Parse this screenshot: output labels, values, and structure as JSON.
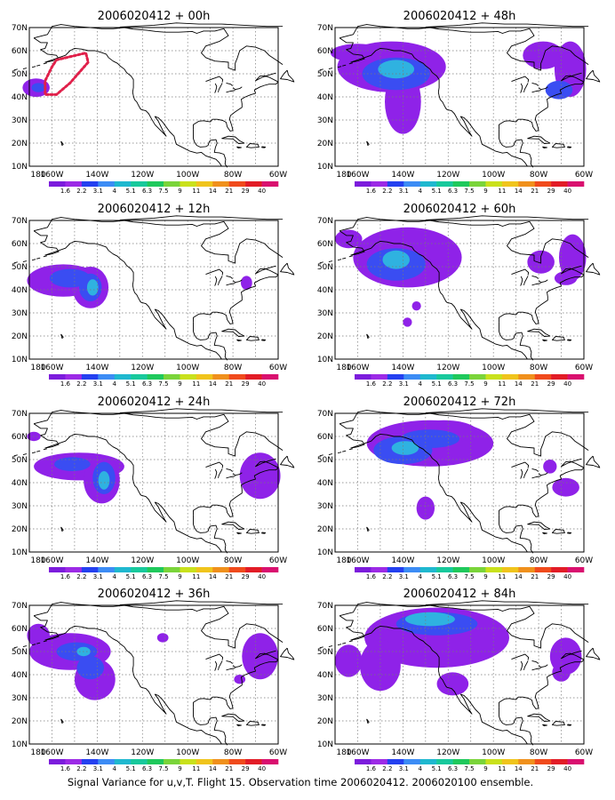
{
  "caption": "Signal Variance for u,v,T. Flight 15. Observation time 2006020412. 2006020100 ensemble.",
  "map": {
    "lon_labels": [
      "180",
      "160W",
      "140W",
      "120W",
      "100W",
      "80W",
      "60W"
    ],
    "lat_labels": [
      "10N",
      "20N",
      "30N",
      "40N",
      "50N",
      "60N",
      "70N"
    ],
    "lon_range": [
      -170,
      -60
    ],
    "lat_range": [
      10,
      70
    ],
    "projection": "cylindrical equidistant",
    "grid": "dotted"
  },
  "colorbar": {
    "labels": [
      "1.6",
      "2.2",
      "3.1",
      "4",
      "5.1",
      "6.3",
      "7.5",
      "9",
      "11",
      "14",
      "21",
      "29",
      "40"
    ],
    "colors": [
      "#7c1cdc",
      "#9c2ae6",
      "#2440f0",
      "#3c8cf5",
      "#1fb8cf",
      "#18c99c",
      "#1fc95c",
      "#7ad43a",
      "#c9e11c",
      "#f0c41c",
      "#f0901c",
      "#f04a1c",
      "#e21c26",
      "#d9106f"
    ]
  },
  "panels": [
    {
      "id": "p00",
      "title": "2006020412 + 00h",
      "track": [
        [
          -158,
          56
        ],
        [
          -145,
          59
        ],
        [
          -144,
          55
        ],
        [
          -152,
          46
        ],
        [
          -158,
          41
        ],
        [
          -163,
          41
        ],
        [
          -163,
          47
        ],
        [
          -160,
          53
        ]
      ],
      "blobs": [
        {
          "lon": -167,
          "lat": 44,
          "rx": 6,
          "ry": 4,
          "level": 0
        },
        {
          "lon": -166,
          "lat": 44,
          "rx": 3,
          "ry": 2,
          "level": 1
        }
      ]
    },
    {
      "id": "p48",
      "title": "2006020412 + 48h",
      "blobs": [
        {
          "lon": -145,
          "lat": 53,
          "rx": 24,
          "ry": 11,
          "level": 0
        },
        {
          "lon": -140,
          "lat": 38,
          "rx": 8,
          "ry": 14,
          "level": 0
        },
        {
          "lon": -143,
          "lat": 50,
          "rx": 15,
          "ry": 7,
          "level": 1
        },
        {
          "lon": -143,
          "lat": 52,
          "rx": 8,
          "ry": 4,
          "level": 2
        },
        {
          "lon": -78,
          "lat": 58,
          "rx": 9,
          "ry": 6,
          "level": 0
        },
        {
          "lon": -66,
          "lat": 52,
          "rx": 7,
          "ry": 12,
          "level": 0
        },
        {
          "lon": -71,
          "lat": 43,
          "rx": 6,
          "ry": 4,
          "level": 1
        },
        {
          "lon": -160,
          "lat": 59,
          "rx": 12,
          "ry": 4,
          "level": 0
        }
      ]
    },
    {
      "id": "p12",
      "title": "2006020412 + 12h",
      "blobs": [
        {
          "lon": -155,
          "lat": 44,
          "rx": 16,
          "ry": 7,
          "level": 0
        },
        {
          "lon": -143,
          "lat": 41,
          "rx": 8,
          "ry": 9,
          "level": 0
        },
        {
          "lon": -152,
          "lat": 45,
          "rx": 9,
          "ry": 4,
          "level": 1
        },
        {
          "lon": -143,
          "lat": 41,
          "rx": 5,
          "ry": 6,
          "level": 1
        },
        {
          "lon": -142,
          "lat": 41,
          "rx": 2.5,
          "ry": 3.5,
          "level": 2
        },
        {
          "lon": -74,
          "lat": 43,
          "rx": 2.5,
          "ry": 3,
          "level": 0
        }
      ]
    },
    {
      "id": "p60",
      "title": "2006020412 + 60h",
      "blobs": [
        {
          "lon": -138,
          "lat": 54,
          "rx": 24,
          "ry": 13,
          "level": 0
        },
        {
          "lon": -143,
          "lat": 51,
          "rx": 13,
          "ry": 7,
          "level": 1
        },
        {
          "lon": -143,
          "lat": 53,
          "rx": 6,
          "ry": 4,
          "level": 2
        },
        {
          "lon": -164,
          "lat": 62,
          "rx": 6,
          "ry": 4,
          "level": 0
        },
        {
          "lon": -79,
          "lat": 52,
          "rx": 6,
          "ry": 5,
          "level": 0
        },
        {
          "lon": -65,
          "lat": 54,
          "rx": 6,
          "ry": 10,
          "level": 0
        },
        {
          "lon": -68,
          "lat": 45,
          "rx": 5,
          "ry": 3,
          "level": 0
        },
        {
          "lon": -134,
          "lat": 33,
          "rx": 2,
          "ry": 2,
          "level": 0
        },
        {
          "lon": -138,
          "lat": 26,
          "rx": 2,
          "ry": 2,
          "level": 0
        }
      ]
    },
    {
      "id": "p24",
      "title": "2006020412 + 24h",
      "blobs": [
        {
          "lon": -148,
          "lat": 47,
          "rx": 20,
          "ry": 6,
          "level": 0
        },
        {
          "lon": -138,
          "lat": 41,
          "rx": 8,
          "ry": 10,
          "level": 0
        },
        {
          "lon": -151,
          "lat": 48,
          "rx": 8,
          "ry": 3,
          "level": 1
        },
        {
          "lon": -137,
          "lat": 42,
          "rx": 5,
          "ry": 7,
          "level": 1
        },
        {
          "lon": -137,
          "lat": 41,
          "rx": 2.5,
          "ry": 4,
          "level": 2
        },
        {
          "lon": -68,
          "lat": 43,
          "rx": 9,
          "ry": 10,
          "level": 0
        },
        {
          "lon": -168,
          "lat": 60,
          "rx": 3,
          "ry": 2,
          "level": 0
        }
      ]
    },
    {
      "id": "p72",
      "title": "2006020412 + 72h",
      "blobs": [
        {
          "lon": -128,
          "lat": 57,
          "rx": 28,
          "ry": 10,
          "level": 0
        },
        {
          "lon": -122,
          "lat": 62,
          "rx": 15,
          "ry": 5,
          "level": 0
        },
        {
          "lon": -140,
          "lat": 54,
          "rx": 13,
          "ry": 6,
          "level": 1
        },
        {
          "lon": -128,
          "lat": 59,
          "rx": 13,
          "ry": 4,
          "level": 1
        },
        {
          "lon": -139,
          "lat": 55,
          "rx": 6,
          "ry": 3,
          "level": 2
        },
        {
          "lon": -130,
          "lat": 29,
          "rx": 4,
          "ry": 5,
          "level": 0
        },
        {
          "lon": -68,
          "lat": 38,
          "rx": 6,
          "ry": 4,
          "level": 0
        },
        {
          "lon": -75,
          "lat": 47,
          "rx": 3,
          "ry": 3,
          "level": 0
        }
      ]
    },
    {
      "id": "p36",
      "title": "2006020412 + 36h",
      "blobs": [
        {
          "lon": -152,
          "lat": 50,
          "rx": 18,
          "ry": 8,
          "level": 0
        },
        {
          "lon": -141,
          "lat": 38,
          "rx": 9,
          "ry": 9,
          "level": 0
        },
        {
          "lon": -166,
          "lat": 57,
          "rx": 5,
          "ry": 5,
          "level": 0
        },
        {
          "lon": -149,
          "lat": 50,
          "rx": 9,
          "ry": 4,
          "level": 1
        },
        {
          "lon": -143,
          "lat": 43,
          "rx": 6,
          "ry": 5,
          "level": 1
        },
        {
          "lon": -146,
          "lat": 50,
          "rx": 3,
          "ry": 2,
          "level": 2
        },
        {
          "lon": -68,
          "lat": 48,
          "rx": 8,
          "ry": 10,
          "level": 0
        },
        {
          "lon": -111,
          "lat": 56,
          "rx": 2.5,
          "ry": 2,
          "level": 0
        },
        {
          "lon": -77,
          "lat": 38,
          "rx": 2.5,
          "ry": 2,
          "level": 0
        }
      ]
    },
    {
      "id": "p84",
      "title": "2006020412 + 84h",
      "blobs": [
        {
          "lon": -125,
          "lat": 56,
          "rx": 32,
          "ry": 13,
          "level": 0
        },
        {
          "lon": -150,
          "lat": 44,
          "rx": 9,
          "ry": 11,
          "level": 0
        },
        {
          "lon": -164,
          "lat": 46,
          "rx": 6,
          "ry": 7,
          "level": 0
        },
        {
          "lon": -118,
          "lat": 36,
          "rx": 7,
          "ry": 5,
          "level": 0
        },
        {
          "lon": -125,
          "lat": 62,
          "rx": 18,
          "ry": 5,
          "level": 1
        },
        {
          "lon": -128,
          "lat": 64,
          "rx": 11,
          "ry": 3,
          "level": 2
        },
        {
          "lon": -68,
          "lat": 48,
          "rx": 7,
          "ry": 8,
          "level": 0
        },
        {
          "lon": -70,
          "lat": 41,
          "rx": 4,
          "ry": 4,
          "level": 0
        }
      ]
    }
  ]
}
